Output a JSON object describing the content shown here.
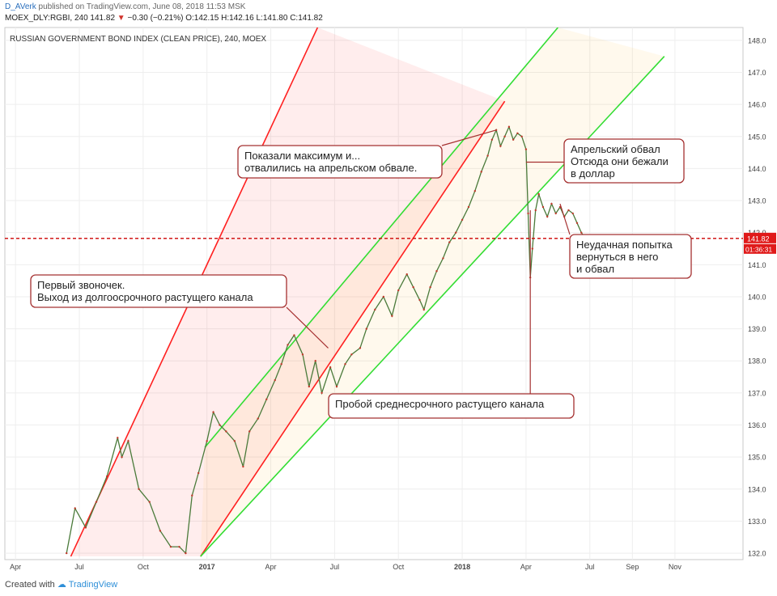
{
  "header": {
    "publisher": "D_AVerk",
    "published_text": "published on TradingView.com, June 08, 2018 11:53 MSK",
    "symbol_line": "MOEX_DLY:RGBI, 240  141.82",
    "change_arrow": "▼",
    "change": "−0.30 (−0.21%)",
    "ohlc": "O:142.15  H:142.16  L:141.80  C:141.82"
  },
  "footer": {
    "created_with": "Created with",
    "brand": "TradingView"
  },
  "chart_data": {
    "type": "line",
    "title": "RUSSIAN GOVERNMENT BOND INDEX (CLEAN PRICE), 240, MOEX",
    "x_ticks": [
      "Apr",
      "Jul",
      "Oct",
      "2017",
      "Apr",
      "Jul",
      "Oct",
      "2018",
      "Apr",
      "Jul",
      "Sep",
      "Nov"
    ],
    "x_tick_t": [
      0,
      3,
      6,
      9,
      12,
      15,
      18,
      21,
      24,
      27,
      29,
      31
    ],
    "xlim_t": [
      -0.5,
      34.2
    ],
    "y_ticks": [
      132,
      133,
      134,
      135,
      136,
      137,
      138,
      139,
      140,
      141,
      142,
      143,
      144,
      145,
      146,
      147,
      148
    ],
    "ylim": [
      131.8,
      148.4
    ],
    "grid": true,
    "last_price_label": "141.82",
    "countdown_label": "01:36:31",
    "price_series": {
      "name": "MOEX_DLY:RGBI",
      "x_t": [
        2.4,
        2.8,
        3.3,
        3.8,
        4.3,
        4.8,
        5.0,
        5.3,
        5.8,
        6.3,
        6.8,
        7.3,
        7.7,
        8.0,
        8.3,
        8.6,
        9.0,
        9.3,
        9.6,
        9.9,
        10.3,
        10.7,
        11.0,
        11.4,
        11.8,
        12.2,
        12.5,
        12.8,
        13.1,
        13.5,
        13.8,
        14.1,
        14.4,
        14.8,
        15.1,
        15.5,
        15.8,
        16.2,
        16.5,
        16.9,
        17.3,
        17.7,
        18.0,
        18.4,
        18.7,
        19.0,
        19.2,
        19.5,
        19.8,
        20.1,
        20.4,
        20.7,
        21.0,
        21.3,
        21.6,
        21.9,
        22.2,
        22.4,
        22.6,
        22.8,
        23.0,
        23.2,
        23.4,
        23.6,
        23.8,
        24.0,
        24.1,
        24.2,
        24.3,
        24.45,
        24.6,
        24.8,
        25.0,
        25.2,
        25.4,
        25.6,
        25.8,
        26.0,
        26.2,
        26.4,
        26.6,
        26.8
      ],
      "values": [
        132.0,
        133.4,
        132.8,
        133.6,
        134.4,
        135.6,
        135.0,
        135.5,
        134.0,
        133.6,
        132.7,
        132.2,
        132.2,
        132.0,
        133.8,
        134.5,
        135.5,
        136.4,
        136.0,
        135.8,
        135.5,
        134.7,
        135.8,
        136.2,
        136.8,
        137.4,
        137.9,
        138.5,
        138.8,
        138.2,
        137.2,
        138.0,
        137.0,
        137.8,
        137.2,
        137.9,
        138.2,
        138.4,
        139.0,
        139.6,
        140.0,
        139.4,
        140.2,
        140.7,
        140.3,
        139.9,
        139.6,
        140.3,
        140.8,
        141.2,
        141.7,
        142.0,
        142.4,
        142.8,
        143.3,
        143.9,
        144.4,
        144.9,
        145.2,
        144.7,
        145.0,
        145.3,
        144.9,
        145.1,
        145.0,
        144.6,
        142.6,
        140.6,
        141.5,
        142.7,
        143.2,
        142.8,
        142.5,
        142.9,
        142.6,
        142.8,
        142.5,
        142.7,
        142.6,
        142.3,
        142.0,
        141.82
      ]
    },
    "lines": [
      {
        "name": "long-term channel upper",
        "color": "#ff2020",
        "t": [
          2.6,
          14.2
        ],
        "v": [
          131.9,
          148.4
        ]
      },
      {
        "name": "long-term channel lower",
        "color": "#ff2020",
        "t": [
          8.7,
          23.0
        ],
        "v": [
          131.9,
          146.1
        ]
      },
      {
        "name": "mid-term channel upper",
        "color": "#33dd33",
        "t": [
          8.9,
          25.5
        ],
        "v": [
          135.3,
          148.4
        ]
      },
      {
        "name": "mid-term channel lower",
        "color": "#33dd33",
        "t": [
          8.7,
          30.5
        ],
        "v": [
          131.9,
          147.5
        ]
      }
    ],
    "support_level": {
      "value": 141.82,
      "color": "#cc0000"
    },
    "annotations": [
      {
        "lines": [
          "Первый звоночек.",
          "Выход из долгоосрочного растущего канала"
        ],
        "target_t": 14.7,
        "target_v": 138.4
      },
      {
        "lines": [
          "Показали максимум и...",
          "отвалились на апрельском обвале."
        ],
        "target_t": 22.6,
        "target_v": 145.2
      },
      {
        "lines": [
          "Апрельский обвал",
          "Отсюда они бежали",
          "в доллар"
        ],
        "target_t": 24.0,
        "target_v": 144.2
      },
      {
        "lines": [
          "Неудачная попытка",
          "вернуться в него",
          "и обвал"
        ],
        "target_t": 25.6,
        "target_v": 142.9
      },
      {
        "lines": [
          "Пробой среднесрочного растущего канала"
        ],
        "target_t": 24.2,
        "target_v": 142.7
      }
    ]
  }
}
